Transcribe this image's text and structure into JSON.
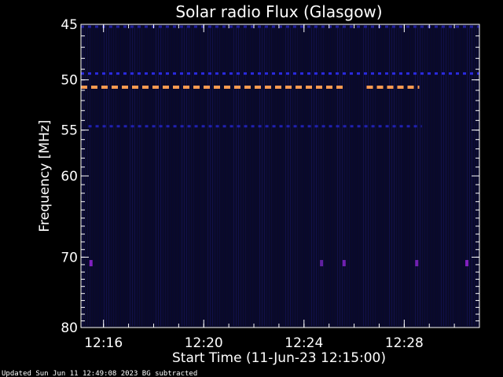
{
  "chart_data": {
    "type": "heatmap",
    "title": "Solar radio Flux (Glasgow)",
    "xlabel": "Start Time (11-Jun-23 12:15:00)",
    "ylabel": "Frequency [MHz]",
    "x_unit": "minutes after 12:00",
    "xlim": [
      15.1,
      31.0
    ],
    "ylim": [
      80,
      45
    ],
    "y_scale": "log",
    "x_ticks": [
      {
        "value": 16,
        "label": "12:16"
      },
      {
        "value": 20,
        "label": "12:20"
      },
      {
        "value": 24,
        "label": "12:24"
      },
      {
        "value": 28,
        "label": "12:28"
      }
    ],
    "y_ticks": [
      {
        "value": 45,
        "label": "45"
      },
      {
        "value": 50,
        "label": "50"
      },
      {
        "value": 55,
        "label": "55"
      },
      {
        "value": 60,
        "label": "60"
      },
      {
        "value": 70,
        "label": "70"
      },
      {
        "value": 80,
        "label": "80"
      }
    ],
    "background_color": "#0a0a28",
    "bands": [
      {
        "freq": 45.2,
        "t_start": 15.1,
        "t_end": 31.0,
        "color": "#2020a0",
        "intensity": "low"
      },
      {
        "freq": 49.4,
        "t_start": 15.1,
        "t_end": 31.0,
        "color": "#2a2ae0",
        "intensity": "medium"
      },
      {
        "freq": 50.7,
        "t_start": 15.1,
        "t_end": 25.6,
        "color": "#ff9a50",
        "intensity": "high"
      },
      {
        "freq": 50.7,
        "t_start": 26.5,
        "t_end": 28.6,
        "color": "#ff9a50",
        "intensity": "high"
      },
      {
        "freq": 54.6,
        "t_start": 15.4,
        "t_end": 28.7,
        "color": "#2020b0",
        "intensity": "medium"
      }
    ],
    "spots": [
      {
        "time": 15.5,
        "freq": 70.8,
        "color": "#8020c0"
      },
      {
        "time": 24.7,
        "freq": 70.8,
        "color": "#6020a0"
      },
      {
        "time": 25.6,
        "freq": 70.8,
        "color": "#7020b0"
      },
      {
        "time": 28.5,
        "freq": 70.8,
        "color": "#7020b0"
      },
      {
        "time": 30.5,
        "freq": 70.8,
        "color": "#8020c0"
      }
    ]
  },
  "footer_text": "Updated Sun Jun 11 12:49:08 2023   BG subtracted"
}
